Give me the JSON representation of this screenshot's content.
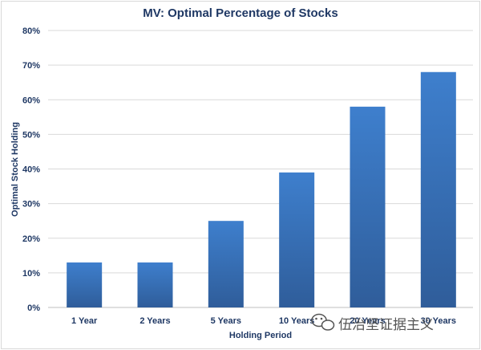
{
  "chart_data": {
    "type": "bar",
    "title": "MV: Optimal Percentage of Stocks",
    "xlabel": "Holding Period",
    "ylabel": "Optimal Stock Holding",
    "categories": [
      "1 Year",
      "2 Years",
      "5 Years",
      "10 Years",
      "20 Years",
      "30 Years"
    ],
    "values": [
      13,
      13,
      25,
      39,
      58,
      68
    ],
    "ylim": [
      0,
      80
    ],
    "yticks": [
      0,
      10,
      20,
      30,
      40,
      50,
      60,
      70,
      80
    ],
    "ytick_suffix": "%",
    "grid": true,
    "legend": "none",
    "colors": {
      "bar_top": "#3e7fcd",
      "bar_bottom": "#2f5d9a",
      "text": "#1f3864",
      "grid": "#d9d9d9"
    }
  },
  "watermark": {
    "text": "伍治坚证据主义",
    "icon": "wechat-icon"
  }
}
